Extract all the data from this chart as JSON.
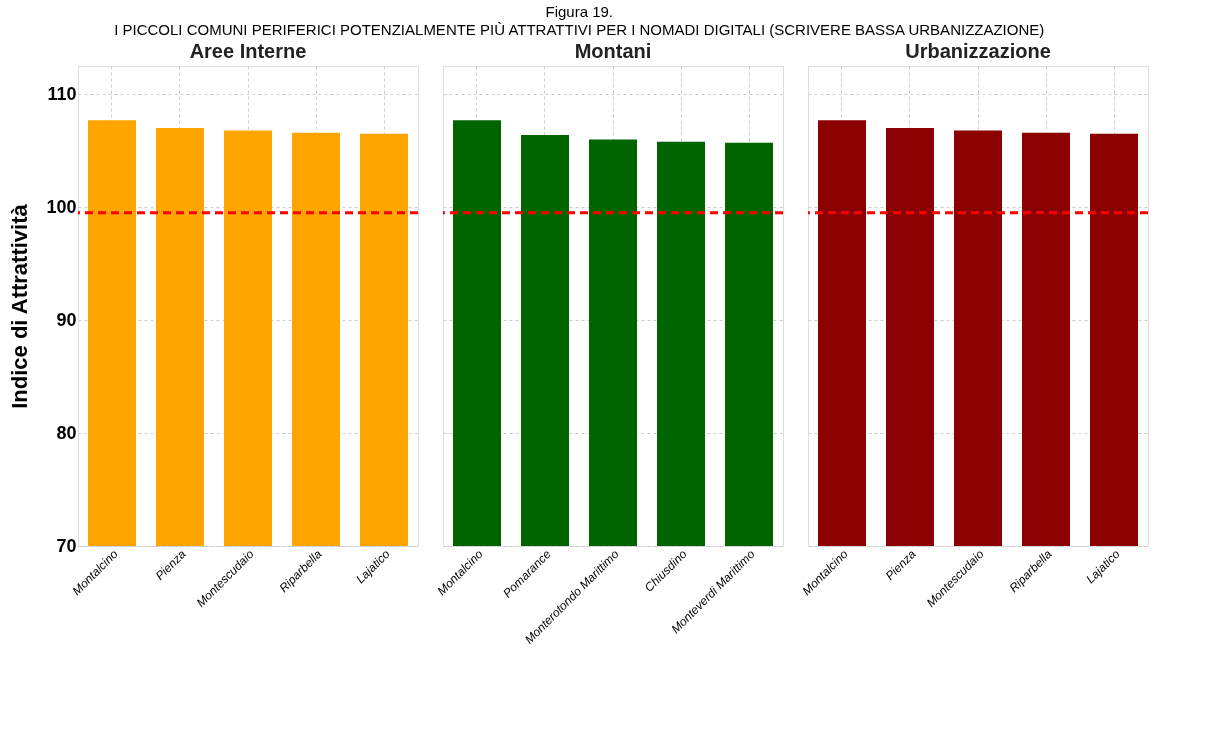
{
  "chart_data": [
    {
      "type": "bar",
      "title": "Aree Interne",
      "annotations": [
        "Figura 19.",
        "I PICCOLI COMUNI PERIFERICI POTENZIALMENTE PIÙ ATTRATTIVI PER I NOMADI DIGITALI (SCRIVERE BASSA URBANIZZAZIONE)"
      ],
      "ylabel": "Indice di Attrattività",
      "categories": [
        "Montalcino",
        "Pienza",
        "Montescudaio",
        "Riparbella",
        "Lajatico"
      ],
      "values": [
        107.7,
        107.0,
        106.8,
        106.6,
        106.5
      ],
      "color": "#ffa500",
      "ylim": [
        70,
        112.5
      ],
      "yticks": [
        70,
        80,
        90,
        100,
        110
      ],
      "grid": true,
      "ref_lines": [
        {
          "axis": "y",
          "value": 99.5,
          "label": null,
          "color": "#ff0000",
          "line_style": "dashed"
        }
      ]
    },
    {
      "type": "bar",
      "title": "Montani",
      "categories": [
        "Montalcino",
        "Pomarance",
        "Monterotondo Marittimo",
        "Chiusdino",
        "Monteverdi Marittimo"
      ],
      "values": [
        107.7,
        106.4,
        106.0,
        105.8,
        105.7
      ],
      "color": "#006400",
      "ylim": [
        70,
        112.5
      ],
      "yticks": [
        70,
        80,
        90,
        100,
        110
      ],
      "grid": true,
      "tick_labels": "x",
      "ref_lines": [
        {
          "axis": "y",
          "value": 99.5,
          "label": null,
          "color": "#ff0000",
          "line_style": "dashed"
        }
      ]
    },
    {
      "type": "bar",
      "title": "Urbanizzazione",
      "categories": [
        "Montalcino",
        "Pienza",
        "Montescudaio",
        "Riparbella",
        "Lajatico"
      ],
      "values": [
        107.7,
        107.0,
        106.8,
        106.6,
        106.5
      ],
      "color": "#8b0000",
      "ylim": [
        70,
        112.5
      ],
      "yticks": [
        70,
        80,
        90,
        100,
        110
      ],
      "grid": true,
      "tick_labels": "x",
      "ref_lines": [
        {
          "axis": "y",
          "value": 99.5,
          "label": null,
          "color": "#ff0000",
          "line_style": "dashed"
        }
      ]
    }
  ]
}
